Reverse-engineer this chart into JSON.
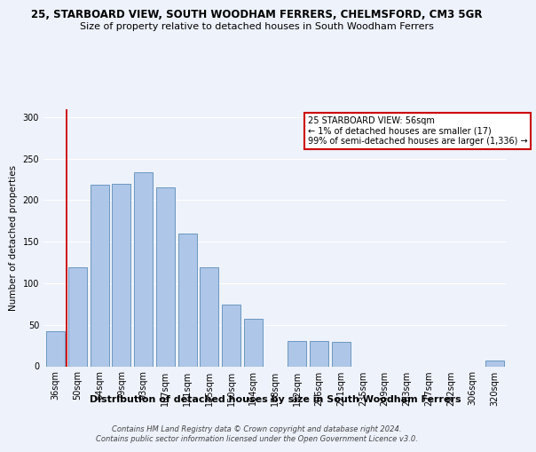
{
  "title": "25, STARBOARD VIEW, SOUTH WOODHAM FERRERS, CHELMSFORD, CM3 5GR",
  "subtitle": "Size of property relative to detached houses in South Woodham Ferrers",
  "xlabel": "Distribution of detached houses by size in South Woodham Ferrers",
  "ylabel": "Number of detached properties",
  "footer_line1": "Contains HM Land Registry data © Crown copyright and database right 2024.",
  "footer_line2": "Contains public sector information licensed under the Open Government Licence v3.0.",
  "categories": [
    "36sqm",
    "50sqm",
    "64sqm",
    "79sqm",
    "93sqm",
    "107sqm",
    "121sqm",
    "135sqm",
    "150sqm",
    "164sqm",
    "178sqm",
    "192sqm",
    "206sqm",
    "221sqm",
    "235sqm",
    "249sqm",
    "263sqm",
    "277sqm",
    "292sqm",
    "306sqm",
    "320sqm"
  ],
  "values": [
    42,
    119,
    219,
    220,
    234,
    215,
    160,
    119,
    74,
    57,
    0,
    31,
    30,
    29,
    0,
    0,
    0,
    0,
    0,
    0,
    7
  ],
  "bar_color": "#aec6e8",
  "bar_edge_color": "#5b8db8",
  "vline_x": 0.5,
  "vline_color": "#cc0000",
  "annotation_box_color": "#cc0000",
  "annotation_text": "25 STARBOARD VIEW: 56sqm\n← 1% of detached houses are smaller (17)\n99% of semi-detached houses are larger (1,336) →",
  "ylim": [
    0,
    310
  ],
  "yticks": [
    0,
    50,
    100,
    150,
    200,
    250,
    300
  ],
  "bg_color": "#eef2fb",
  "plot_bg_color": "#eef2fb",
  "title_fontsize": 8.5,
  "subtitle_fontsize": 8,
  "xlabel_fontsize": 8,
  "ylabel_fontsize": 7.5,
  "tick_fontsize": 7,
  "footer_fontsize": 6
}
